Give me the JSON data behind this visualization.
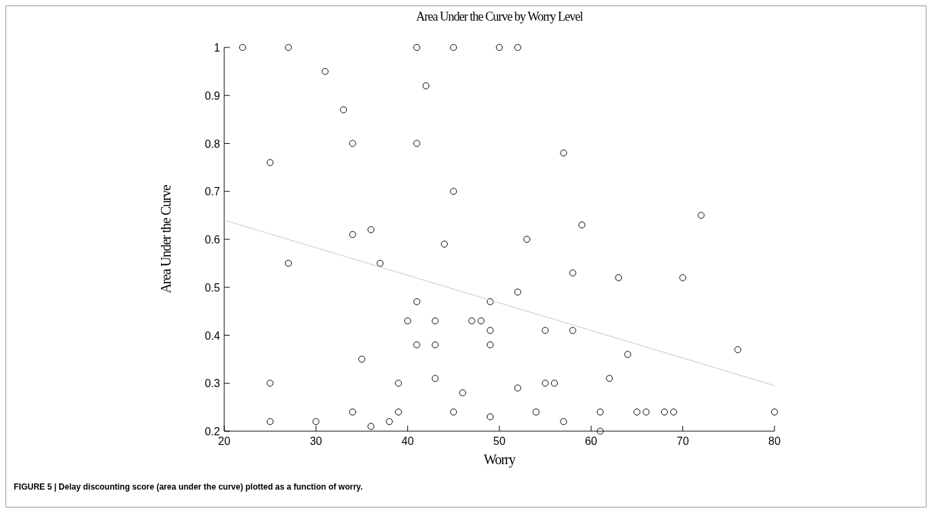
{
  "chart_data": {
    "type": "scatter",
    "title": "Area Under the Curve by Worry Level",
    "xlabel": "Worry",
    "ylabel": "Area Under the Curve",
    "xlim": [
      20,
      80
    ],
    "ylim": [
      0.2,
      1
    ],
    "xticks": [
      20,
      30,
      40,
      50,
      60,
      70,
      80
    ],
    "yticks": [
      0.2,
      0.3,
      0.4,
      0.5,
      0.6,
      0.7,
      0.8,
      0.9,
      1
    ],
    "grid": false,
    "marker": "circle",
    "annotations": [
      "FIGURE 5 | Delay discounting score (area under the curve) plotted as a function of worry."
    ],
    "series": [
      {
        "color": "#000000",
        "x": [
          22,
          27,
          41,
          45,
          50,
          52,
          31,
          42,
          33,
          34,
          41,
          25,
          57,
          45,
          72,
          59,
          34,
          36,
          53,
          44,
          27,
          37,
          58,
          63,
          70,
          52,
          41,
          49,
          40,
          43,
          47,
          48,
          49,
          55,
          58,
          41,
          43,
          49,
          76,
          64,
          35,
          43,
          62,
          25,
          39,
          55,
          56,
          52,
          46,
          34,
          39,
          45,
          54,
          61,
          65,
          66,
          68,
          69,
          80,
          49,
          25,
          30,
          38,
          57,
          36,
          61
        ],
        "values": [
          1,
          1,
          1,
          1,
          1,
          1,
          0.95,
          0.92,
          0.87,
          0.8,
          0.8,
          0.76,
          0.78,
          0.7,
          0.65,
          0.63,
          0.61,
          0.62,
          0.6,
          0.59,
          0.55,
          0.55,
          0.53,
          0.52,
          0.52,
          0.49,
          0.47,
          0.47,
          0.43,
          0.43,
          0.43,
          0.43,
          0.41,
          0.41,
          0.41,
          0.38,
          0.38,
          0.38,
          0.37,
          0.36,
          0.35,
          0.31,
          0.31,
          0.3,
          0.3,
          0.3,
          0.3,
          0.29,
          0.28,
          0.24,
          0.24,
          0.24,
          0.24,
          0.24,
          0.24,
          0.24,
          0.24,
          0.24,
          0.24,
          0.23,
          0.22,
          0.22,
          0.22,
          0.22,
          0.21,
          0.2
        ]
      },
      {
        "type": "line",
        "color": "#c8c8c8",
        "marker": "none",
        "line_style": "solid",
        "x": [
          20,
          80
        ],
        "values": [
          0.64,
          0.295
        ]
      }
    ]
  }
}
